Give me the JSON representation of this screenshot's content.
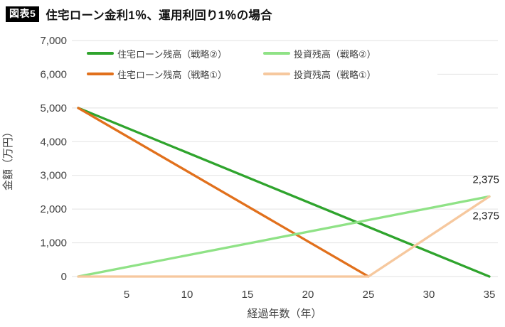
{
  "header": {
    "badge": "図表5",
    "title": "住宅ローン金利1％、運用利回り1％の場合"
  },
  "colors": {
    "grid": "#E2E2E2",
    "tick_text": "#404040",
    "axis_title_text": "#404040",
    "annotation_text": "#1c1c1c",
    "badge_bg": "#000000",
    "badge_text": "#FFFFFF"
  },
  "chart_data": {
    "type": "line",
    "title": "住宅ローン金利1％、運用利回り1％の場合",
    "xlabel": "経過年数（年）",
    "ylabel": "金額（万円）",
    "xlim": [
      1,
      35
    ],
    "ylim": [
      0,
      7000
    ],
    "x_ticks": [
      5,
      10,
      15,
      20,
      25,
      30,
      35
    ],
    "y_ticks": [
      0,
      1000,
      2000,
      3000,
      4000,
      5000,
      6000,
      7000
    ],
    "y_tick_labels": [
      "0",
      "1,000",
      "2,000",
      "3,000",
      "4,000",
      "5,000",
      "6,000",
      "7,000"
    ],
    "grid": true,
    "legend_position": "top",
    "series": [
      {
        "name": "住宅ローン残高（戦略②）",
        "color": "#2FA42D",
        "points": [
          [
            1,
            5000
          ],
          [
            35,
            0
          ]
        ]
      },
      {
        "name": "住宅ローン残高（戦略①）",
        "color": "#E1701C",
        "points": [
          [
            1,
            5000
          ],
          [
            25,
            0
          ]
        ]
      },
      {
        "name": "投資残高（戦略②）",
        "color": "#8FE286",
        "points": [
          [
            1,
            0
          ],
          [
            35,
            2375
          ]
        ]
      },
      {
        "name": "投資残高（戦略①）",
        "color": "#F6C89E",
        "points": [
          [
            1,
            0
          ],
          [
            25,
            0
          ],
          [
            35,
            2375
          ]
        ]
      }
    ],
    "legend_order": [
      0,
      2,
      1,
      3
    ],
    "annotations": [
      {
        "text": "2,375",
        "x": 35,
        "y": 2375,
        "placement": "above"
      },
      {
        "text": "2,375",
        "x": 35,
        "y": 2375,
        "placement": "below"
      }
    ]
  }
}
